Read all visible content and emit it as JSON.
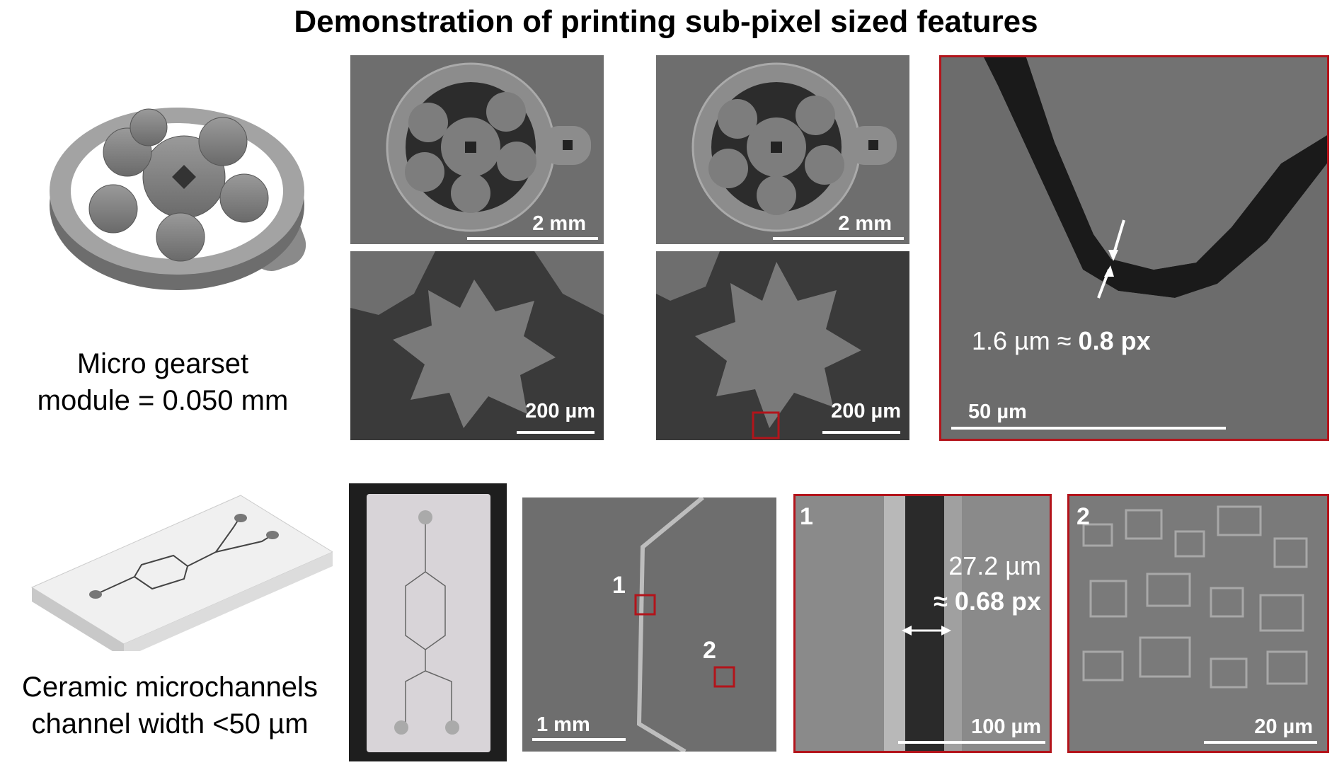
{
  "title": "Demonstration of printing sub-pixel sized features",
  "gearset": {
    "label_line1": "Micro gearset",
    "label_line2": "module = 0.050 mm",
    "panels": [
      {
        "scale": "2 mm"
      },
      {
        "scale": "2 mm"
      },
      {
        "scale": "200 µm"
      },
      {
        "scale": "200 µm"
      }
    ],
    "zoom": {
      "annotation_value": "1.6 µm ≈ ",
      "annotation_bold": "0.8 px",
      "scale": "50 µm"
    }
  },
  "microchannels": {
    "label_line1": "Ceramic microchannels",
    "label_line2": "channel width <50 µm",
    "overview": {
      "scale": "1 mm",
      "marker1": "1",
      "marker2": "2"
    },
    "zoom1": {
      "number": "1",
      "annotation_value": "27.2 µm",
      "annotation_bold": "≈ 0.68 px",
      "scale": "100 µm"
    },
    "zoom2": {
      "number": "2",
      "scale": "20 µm"
    }
  },
  "colors": {
    "highlight_box": "#b3141b",
    "sem_gray": "#6e6e6e"
  }
}
